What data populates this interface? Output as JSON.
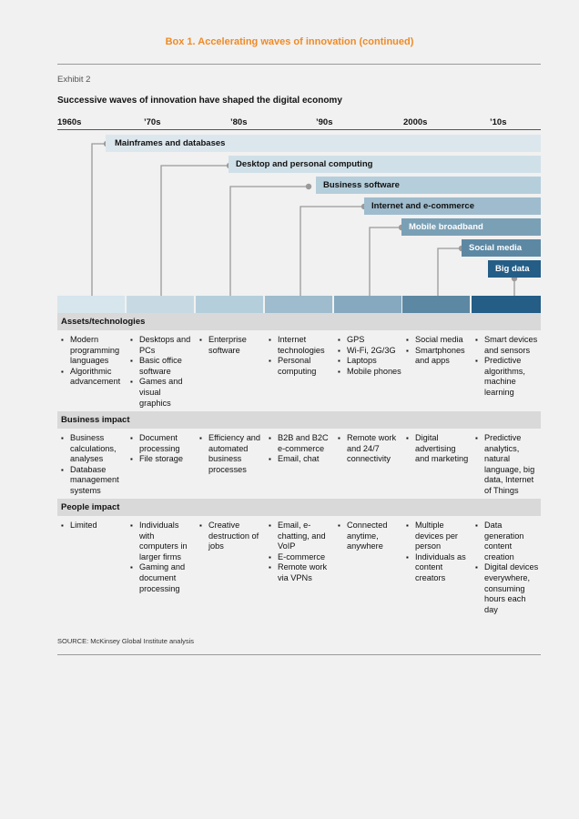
{
  "box_title": "Box 1. Accelerating waves of innovation (continued)",
  "exhibit_label": "Exhibit 2",
  "subtitle": "Successive waves of innovation have shaped the digital economy",
  "decades": [
    "1960s",
    "’70s",
    "’80s",
    "’90s",
    "2000s",
    "’10s"
  ],
  "waves": [
    {
      "label": "Mainframes and databases",
      "color": "#dce7ed",
      "text_color": "#111111"
    },
    {
      "label": "Desktop and personal computing",
      "color": "#d0e0e8",
      "text_color": "#111111"
    },
    {
      "label": "Business software",
      "color": "#b5cedb",
      "text_color": "#111111"
    },
    {
      "label": "Internet and e-commerce",
      "color": "#9ebccd",
      "text_color": "#111111"
    },
    {
      "label": "Mobile broadband",
      "color": "#7aa0b6",
      "text_color": "#ffffff"
    },
    {
      "label": "Social media",
      "color": "#5d88a3",
      "text_color": "#ffffff"
    },
    {
      "label": "Big data",
      "color": "#245d86",
      "text_color": "#ffffff"
    }
  ],
  "column_colors": [
    "#d7e5ec",
    "#c7dae4",
    "#b5cedb",
    "#9ebccd",
    "#86a9bf",
    "#5d88a3",
    "#245d86"
  ],
  "sections": [
    {
      "title": "Assets/technologies",
      "columns": [
        [
          "Modern programming languages",
          "Algorithmic advancement"
        ],
        [
          "Desktops and PCs",
          "Basic office software",
          "Games and visual graphics"
        ],
        [
          "Enterprise software"
        ],
        [
          "Internet technologies",
          "Personal computing"
        ],
        [
          "GPS",
          "Wi-Fi, 2G/3G",
          "Laptops",
          "Mobile phones"
        ],
        [
          "Social media",
          "Smartphones and apps"
        ],
        [
          "Smart devices and sensors",
          "Predictive algorithms, machine learning"
        ]
      ]
    },
    {
      "title": "Business impact",
      "columns": [
        [
          "Business calculations, analyses",
          "Database management systems"
        ],
        [
          "Document processing",
          "File storage"
        ],
        [
          "Efficiency and automated business processes"
        ],
        [
          "B2B and B2C e-commerce",
          "Email, chat"
        ],
        [
          "Remote work and 24/7 connectivity"
        ],
        [
          "Digital advertising and marketing"
        ],
        [
          "Predictive analytics, natural language, big data, Internet of Things"
        ]
      ]
    },
    {
      "title": "People impact",
      "columns": [
        [
          "Limited"
        ],
        [
          "Individuals with computers in larger firms",
          "Gaming and document processing"
        ],
        [
          "Creative destruction of jobs"
        ],
        [
          "Email, e-chatting, and VoIP",
          "E-commerce",
          "Remote work via VPNs"
        ],
        [
          "Connected anytime, anywhere"
        ],
        [
          "Multiple devices per person",
          "Individuals as content creators"
        ],
        [
          "Data generation content creation",
          "Digital devices everywhere, consuming hours each day"
        ]
      ]
    }
  ],
  "source": "SOURCE: McKinsey Global Institute analysis"
}
